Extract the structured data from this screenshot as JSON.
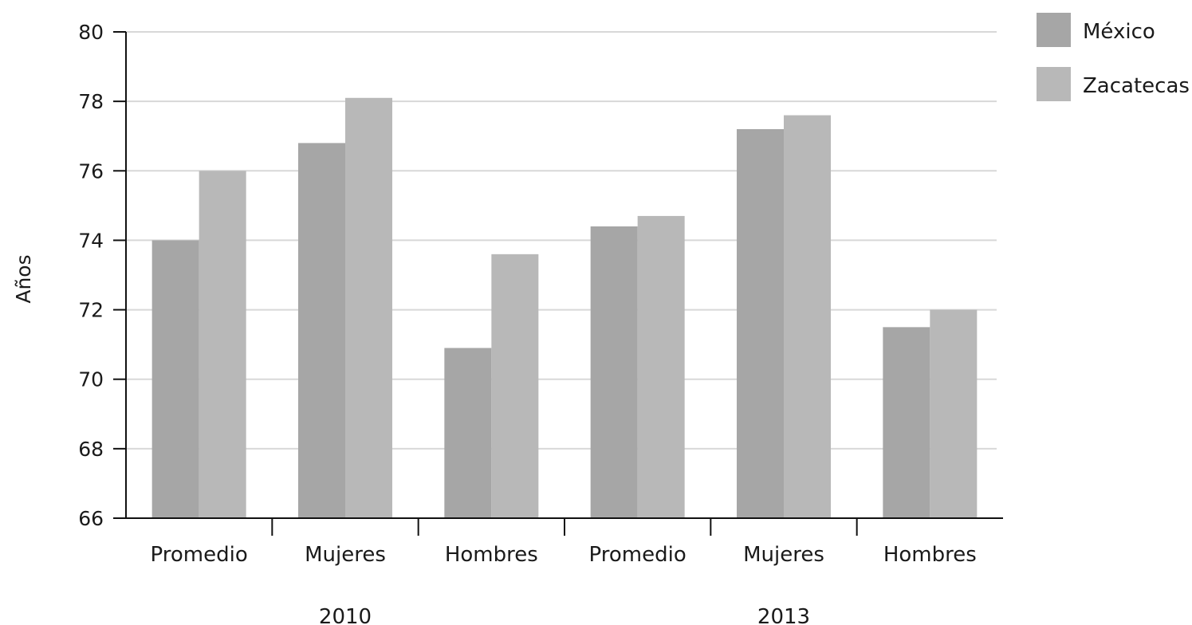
{
  "chart_data": {
    "type": "bar",
    "title": "",
    "xlabel": "",
    "ylabel": "Años",
    "ylim": [
      66,
      80
    ],
    "yticks": [
      66,
      68,
      70,
      72,
      74,
      76,
      78,
      80
    ],
    "grid": true,
    "legend_position": "top-right",
    "groups": [
      {
        "label": "2010",
        "categories": [
          "Promedio",
          "Mujeres",
          "Hombres"
        ]
      },
      {
        "label": "2013",
        "categories": [
          "Promedio",
          "Mujeres",
          "Hombres"
        ]
      }
    ],
    "categories": [
      "Promedio",
      "Mujeres",
      "Hombres",
      "Promedio",
      "Mujeres",
      "Hombres"
    ],
    "series": [
      {
        "name": "México",
        "color": "#a6a6a6",
        "values": [
          74.0,
          76.8,
          70.9,
          74.4,
          77.2,
          71.5
        ]
      },
      {
        "name": "Zacatecas",
        "color": "#b8b8b8",
        "values": [
          76.0,
          78.1,
          73.6,
          74.7,
          77.6,
          72.0
        ]
      }
    ]
  }
}
